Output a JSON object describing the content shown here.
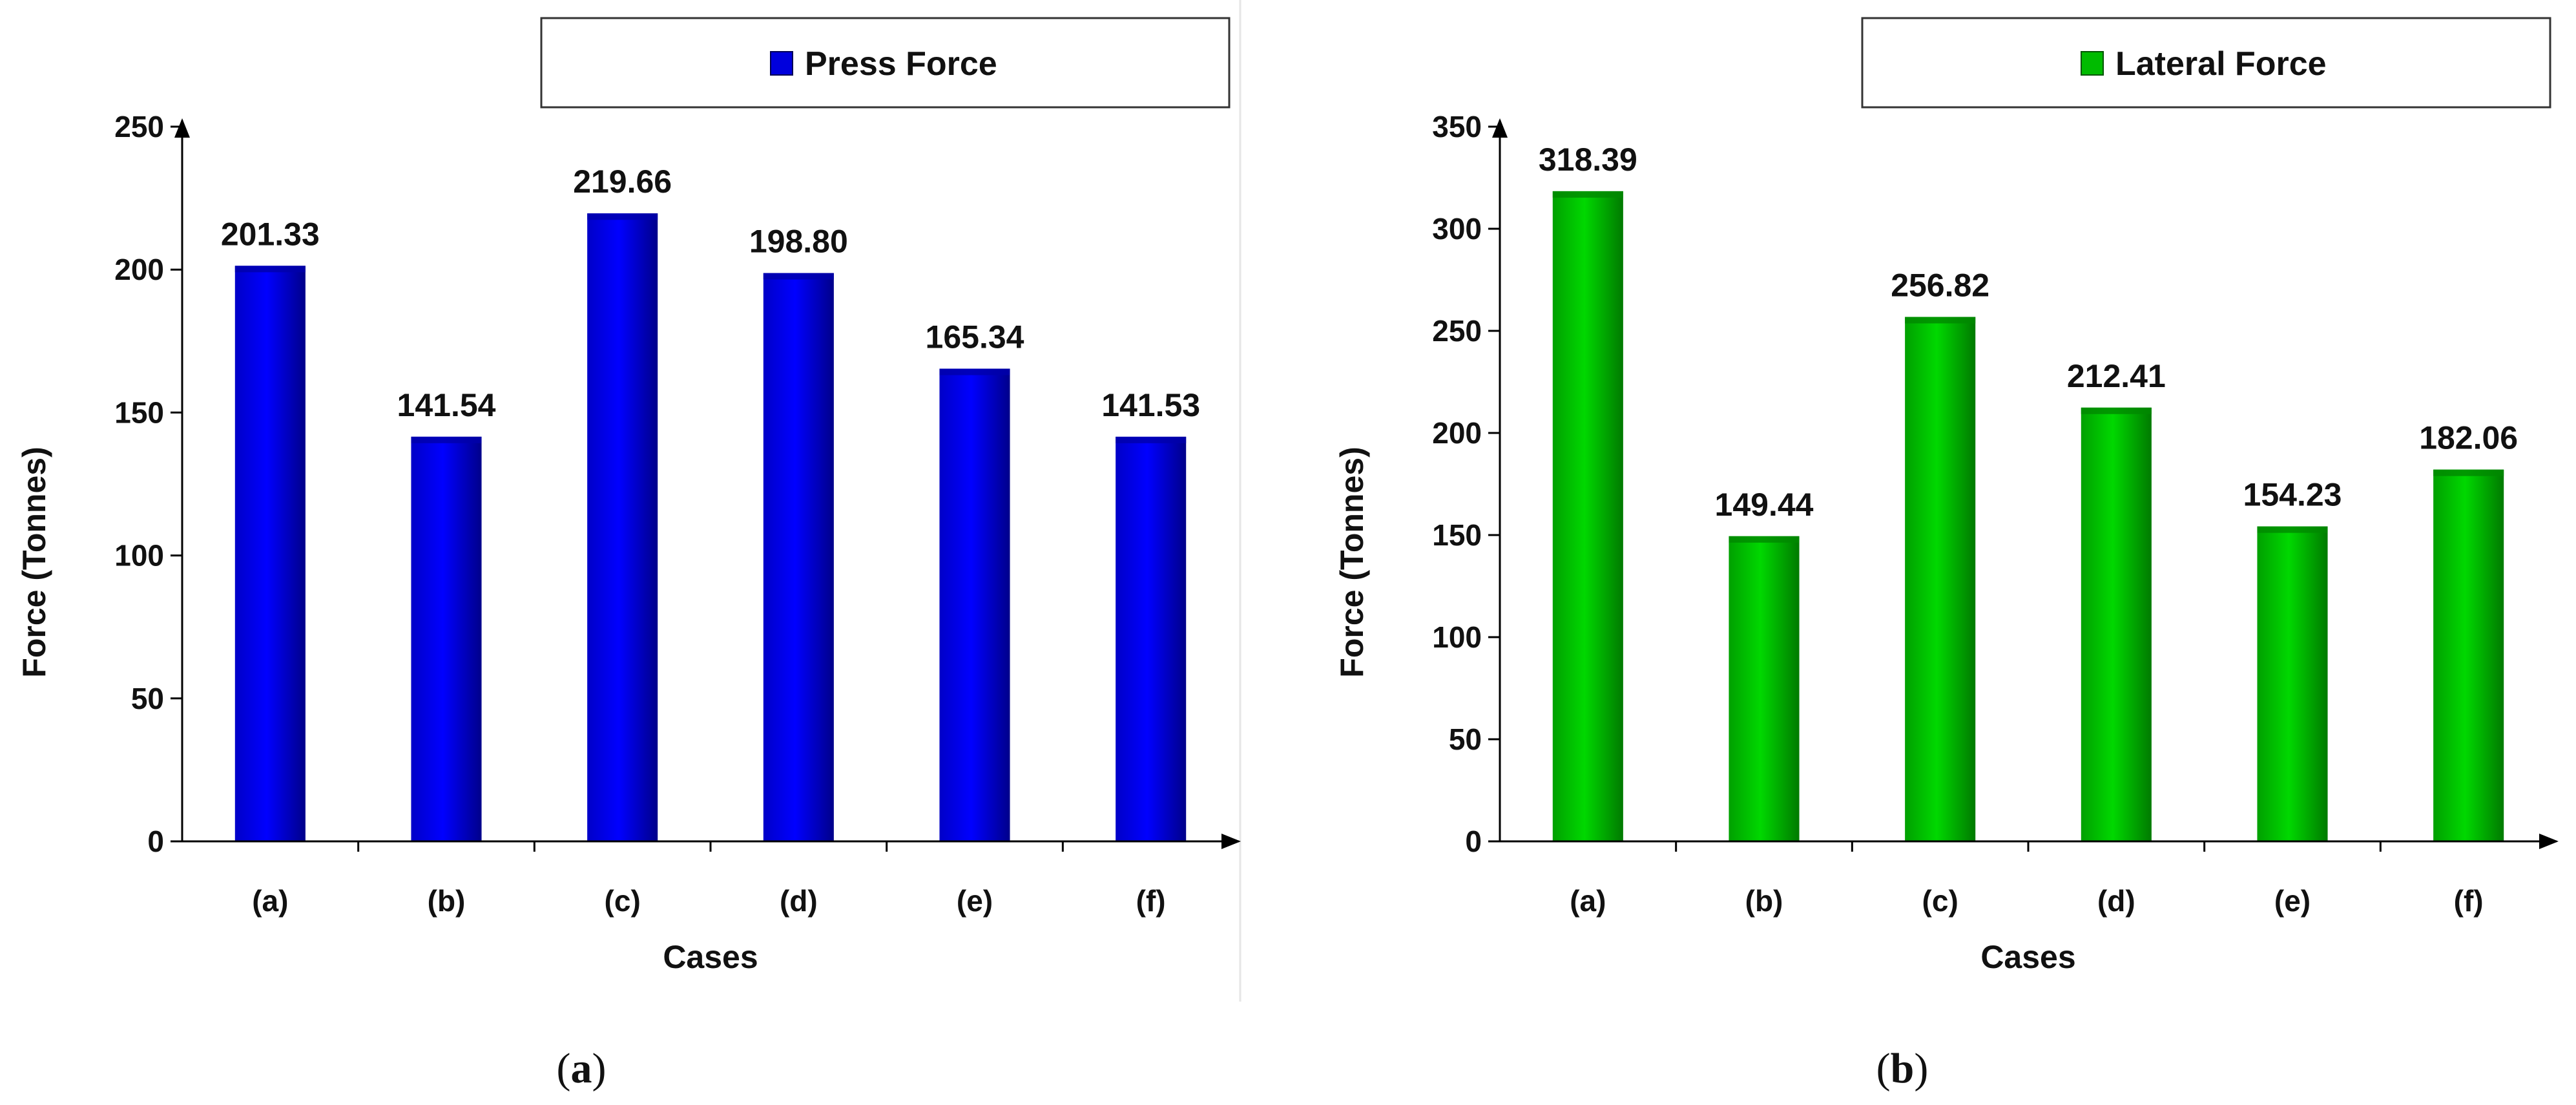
{
  "chart_data": [
    {
      "type": "bar",
      "panel_label": "a",
      "categories": [
        "(a)",
        "(b)",
        "(c)",
        "(d)",
        "(e)",
        "(f)"
      ],
      "series": [
        {
          "name": "Press Force",
          "values": [
            201.33,
            141.54,
            219.66,
            198.8,
            165.34,
            141.53
          ]
        }
      ],
      "value_labels": [
        "201.33",
        "141.54",
        "219.66",
        "198.80",
        "165.34",
        "141.53"
      ],
      "xlabel": "Cases",
      "ylabel": "Force (Tonnes)",
      "ylim": [
        0,
        250
      ],
      "yticks": [
        0,
        50,
        100,
        150,
        200,
        250
      ],
      "grid": false,
      "legend_position": "top-right",
      "color": "#0000ee"
    },
    {
      "type": "bar",
      "panel_label": "b",
      "categories": [
        "(a)",
        "(b)",
        "(c)",
        "(d)",
        "(e)",
        "(f)"
      ],
      "series": [
        {
          "name": "Lateral Force",
          "values": [
            318.39,
            149.44,
            256.82,
            212.41,
            154.23,
            182.06
          ]
        }
      ],
      "value_labels": [
        "318.39",
        "149.44",
        "256.82",
        "212.41",
        "154.23",
        "182.06"
      ],
      "xlabel": "Cases",
      "ylabel": "Force (Tonnes)",
      "ylim": [
        0,
        350
      ],
      "yticks": [
        0,
        50,
        100,
        150,
        200,
        250,
        300,
        350
      ],
      "grid": false,
      "legend_position": "top-right",
      "color": "#00bb00"
    }
  ]
}
